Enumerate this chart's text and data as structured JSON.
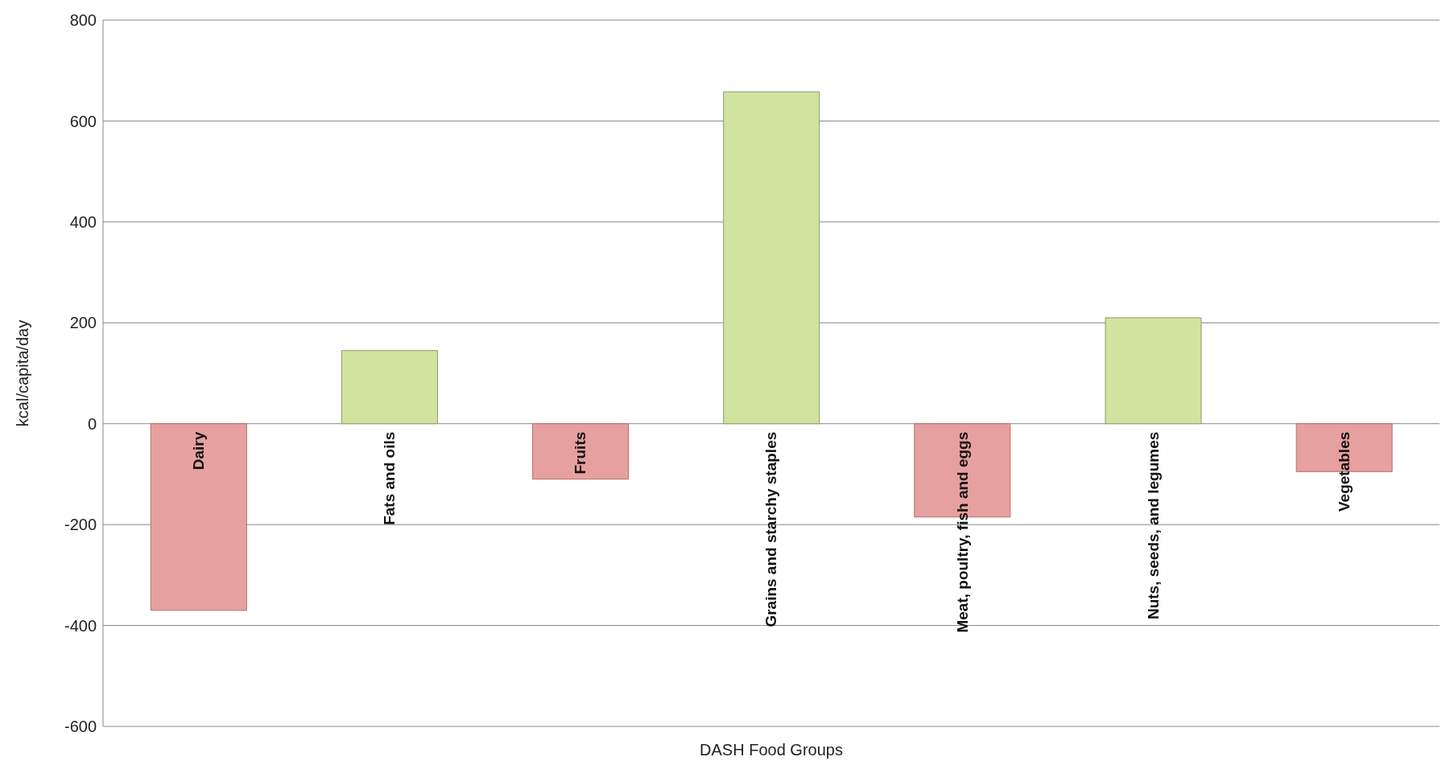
{
  "chart_data": {
    "type": "bar",
    "xlabel": "DASH Food Groups",
    "ylabel": "kcal/capita/day",
    "categories": [
      "Dairy",
      "Fats and oils",
      "Fruits",
      "Grains and starchy staples",
      "Meat, poultry, fish and eggs",
      "Nuts, seeds, and legumes",
      "Vegetables"
    ],
    "values": [
      -370,
      145,
      -110,
      658,
      -185,
      210,
      -95
    ],
    "colors": [
      "#e6a09f",
      "#d2e3a0",
      "#e6a09f",
      "#d2e3a0",
      "#e6a09f",
      "#d2e3a0",
      "#e6a09f"
    ],
    "ylim": [
      -600,
      800
    ],
    "yticks": [
      -600,
      -400,
      -200,
      0,
      200,
      400,
      600,
      800
    ],
    "grid": "y"
  }
}
